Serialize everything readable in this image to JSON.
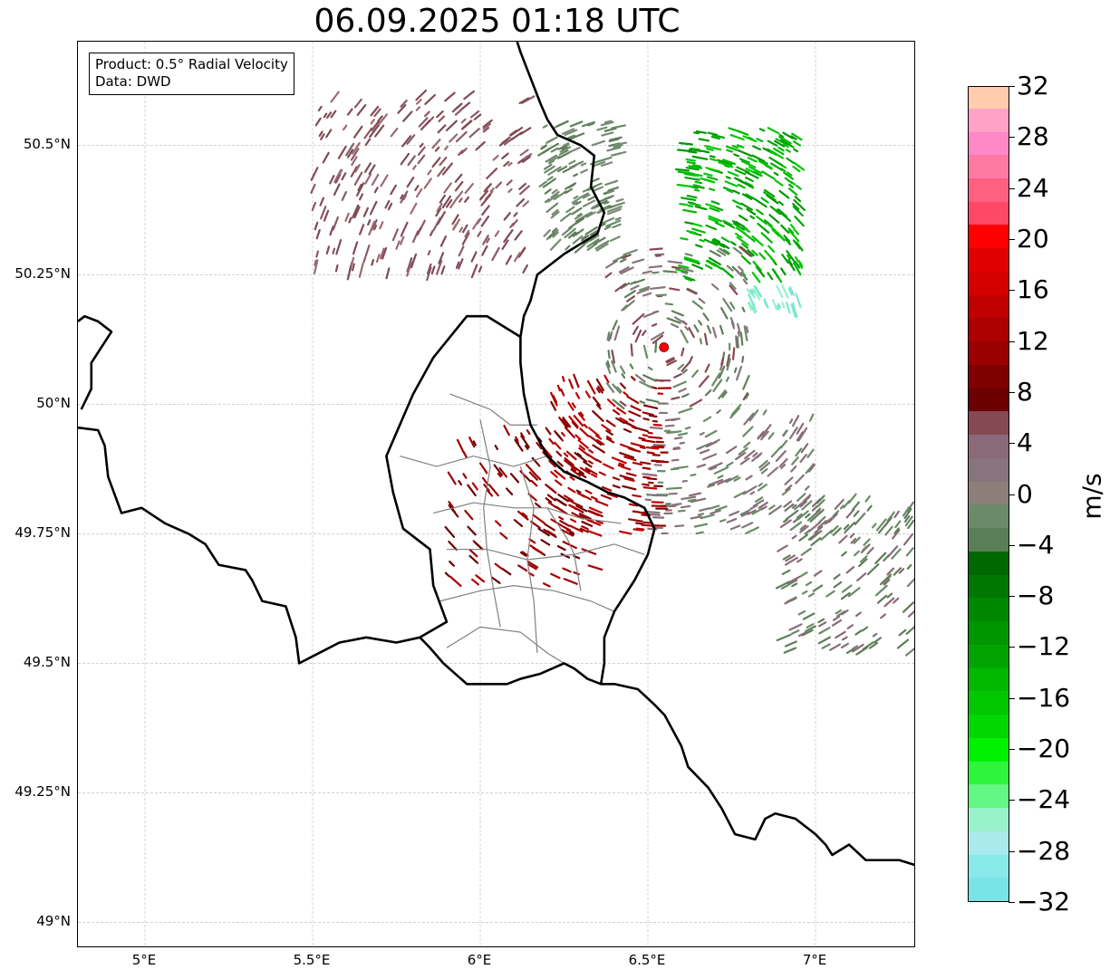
{
  "title": "06.09.2025 01:18 UTC",
  "info": {
    "product": "Product: 0.5° Radial Velocity",
    "data": "Data: DWD"
  },
  "map": {
    "lon_range": [
      4.8,
      7.3
    ],
    "lat_range": [
      48.95,
      50.7
    ],
    "x_ticks": [
      {
        "value": 5.0,
        "label": "5°E"
      },
      {
        "value": 5.5,
        "label": "5.5°E"
      },
      {
        "value": 6.0,
        "label": "6°E"
      },
      {
        "value": 6.5,
        "label": "6.5°E"
      },
      {
        "value": 7.0,
        "label": "7°E"
      }
    ],
    "y_ticks": [
      {
        "value": 49.0,
        "label": "49°N"
      },
      {
        "value": 49.25,
        "label": "49.25°N"
      },
      {
        "value": 49.5,
        "label": "49.5°N"
      },
      {
        "value": 49.75,
        "label": "49.75°N"
      },
      {
        "value": 50.0,
        "label": "50°N"
      },
      {
        "value": 50.25,
        "label": "50.25°N"
      },
      {
        "value": 50.5,
        "label": "50.5°N"
      }
    ],
    "gridlines": true,
    "radar_site": {
      "lon": 6.548,
      "lat": 50.11,
      "color": "#ff0000"
    },
    "borders": [
      [
        [
          4.8,
          50.16
        ],
        [
          4.82,
          50.17
        ],
        [
          4.86,
          50.16
        ],
        [
          4.9,
          50.14
        ],
        [
          4.87,
          50.11
        ],
        [
          4.84,
          50.08
        ],
        [
          4.84,
          50.03
        ],
        [
          4.81,
          49.99
        ]
      ],
      [
        [
          4.8,
          49.955
        ],
        [
          4.86,
          49.95
        ],
        [
          4.88,
          49.92
        ],
        [
          4.89,
          49.86
        ],
        [
          4.93,
          49.79
        ],
        [
          4.99,
          49.8
        ],
        [
          5.06,
          49.77
        ],
        [
          5.13,
          49.75
        ],
        [
          5.18,
          49.73
        ],
        [
          5.22,
          49.69
        ],
        [
          5.3,
          49.68
        ],
        [
          5.32,
          49.66
        ],
        [
          5.35,
          49.62
        ],
        [
          5.42,
          49.61
        ],
        [
          5.45,
          49.55
        ],
        [
          5.46,
          49.5
        ],
        [
          5.52,
          49.52
        ],
        [
          5.58,
          49.54
        ],
        [
          5.66,
          49.55
        ],
        [
          5.75,
          49.54
        ],
        [
          5.82,
          49.55
        ],
        [
          5.85,
          49.53
        ],
        [
          5.89,
          49.5
        ],
        [
          5.96,
          49.46
        ],
        [
          6.08,
          49.46
        ],
        [
          6.12,
          49.47
        ],
        [
          6.18,
          49.48
        ],
        [
          6.25,
          49.5
        ],
        [
          6.28,
          49.49
        ],
        [
          6.32,
          49.47
        ],
        [
          6.36,
          49.46
        ],
        [
          6.4,
          49.46
        ],
        [
          6.47,
          49.45
        ],
        [
          6.52,
          49.42
        ],
        [
          6.55,
          49.4
        ],
        [
          6.6,
          49.34
        ],
        [
          6.62,
          49.3
        ],
        [
          6.68,
          49.26
        ],
        [
          6.72,
          49.22
        ],
        [
          6.76,
          49.17
        ],
        [
          6.82,
          49.16
        ],
        [
          6.85,
          49.2
        ],
        [
          6.88,
          49.21
        ],
        [
          6.94,
          49.2
        ],
        [
          7.0,
          49.17
        ],
        [
          7.03,
          49.15
        ],
        [
          7.05,
          49.13
        ],
        [
          7.1,
          49.15
        ],
        [
          7.15,
          49.12
        ],
        [
          7.25,
          49.12
        ],
        [
          7.3,
          49.11
        ]
      ],
      [
        [
          6.36,
          49.46
        ],
        [
          6.37,
          49.5
        ],
        [
          6.37,
          49.55
        ],
        [
          6.4,
          49.6
        ],
        [
          6.46,
          49.66
        ],
        [
          6.5,
          49.71
        ],
        [
          6.52,
          49.76
        ],
        [
          6.49,
          49.8
        ],
        [
          6.43,
          49.82
        ],
        [
          6.38,
          49.83
        ],
        [
          6.32,
          49.85
        ],
        [
          6.25,
          49.87
        ],
        [
          6.2,
          49.9
        ],
        [
          6.15,
          49.96
        ],
        [
          6.13,
          50.02
        ],
        [
          6.12,
          50.08
        ],
        [
          6.12,
          50.13
        ],
        [
          6.13,
          50.17
        ],
        [
          6.15,
          50.2
        ],
        [
          6.17,
          50.25
        ],
        [
          6.25,
          50.29
        ],
        [
          6.3,
          50.31
        ],
        [
          6.35,
          50.33
        ],
        [
          6.37,
          50.37
        ],
        [
          6.33,
          50.42
        ],
        [
          6.34,
          50.48
        ],
        [
          6.3,
          50.5
        ],
        [
          6.23,
          50.52
        ],
        [
          6.2,
          50.55
        ],
        [
          6.18,
          50.58
        ],
        [
          6.15,
          50.63
        ],
        [
          6.12,
          50.68
        ],
        [
          6.11,
          50.7
        ]
      ],
      [
        [
          5.82,
          49.55
        ],
        [
          5.9,
          49.58
        ],
        [
          5.86,
          49.65
        ],
        [
          5.85,
          49.72
        ],
        [
          5.77,
          49.76
        ],
        [
          5.74,
          49.83
        ],
        [
          5.72,
          49.9
        ],
        [
          5.76,
          49.96
        ],
        [
          5.8,
          50.02
        ],
        [
          5.86,
          50.09
        ],
        [
          5.96,
          50.17
        ],
        [
          6.02,
          50.17
        ],
        [
          6.12,
          50.13
        ]
      ]
    ],
    "districts": [
      [
        [
          5.91,
          50.02
        ],
        [
          6.03,
          49.99
        ],
        [
          6.09,
          49.96
        ],
        [
          6.17,
          49.96
        ]
      ],
      [
        [
          5.76,
          49.9
        ],
        [
          5.87,
          49.88
        ],
        [
          5.98,
          49.9
        ],
        [
          6.1,
          49.88
        ],
        [
          6.2,
          49.9
        ]
      ],
      [
        [
          5.86,
          49.79
        ],
        [
          5.98,
          49.81
        ],
        [
          6.1,
          49.8
        ],
        [
          6.2,
          49.8
        ],
        [
          6.3,
          49.78
        ],
        [
          6.42,
          49.77
        ]
      ],
      [
        [
          5.9,
          49.72
        ],
        [
          6.02,
          49.72
        ],
        [
          6.14,
          49.7
        ],
        [
          6.28,
          49.71
        ],
        [
          6.4,
          49.73
        ],
        [
          6.49,
          49.71
        ]
      ],
      [
        [
          5.88,
          49.62
        ],
        [
          6.0,
          49.64
        ],
        [
          6.1,
          49.65
        ],
        [
          6.22,
          49.64
        ],
        [
          6.33,
          49.62
        ],
        [
          6.4,
          49.6
        ]
      ],
      [
        [
          5.9,
          49.53
        ],
        [
          6.0,
          49.57
        ],
        [
          6.12,
          49.56
        ],
        [
          6.2,
          49.52
        ],
        [
          6.25,
          49.5
        ]
      ],
      [
        [
          6.0,
          49.97
        ],
        [
          6.03,
          49.88
        ],
        [
          6.01,
          49.8
        ],
        [
          6.02,
          49.72
        ],
        [
          6.04,
          49.64
        ],
        [
          6.06,
          49.57
        ]
      ],
      [
        [
          6.12,
          49.88
        ],
        [
          6.16,
          49.8
        ],
        [
          6.14,
          49.7
        ],
        [
          6.16,
          49.62
        ],
        [
          6.17,
          49.52
        ]
      ],
      [
        [
          6.2,
          49.8
        ],
        [
          6.26,
          49.74
        ],
        [
          6.28,
          49.71
        ],
        [
          6.3,
          49.64
        ]
      ]
    ]
  },
  "colorbar": {
    "label": "m/s",
    "vmin": -32,
    "vmax": 32,
    "step": 2,
    "colors": [
      "#7ae3e6",
      "#88e8ea",
      "#a9eaec",
      "#98f2c9",
      "#63f784",
      "#2ef53c",
      "#00f200",
      "#00d800",
      "#00c700",
      "#00b800",
      "#00a400",
      "#009600",
      "#008700",
      "#007700",
      "#006800",
      "#5a7f58",
      "#6a8a6a",
      "#8c7f7a",
      "#88747c",
      "#8a6a78",
      "#864954",
      "#6a0000",
      "#800000",
      "#9a0000",
      "#ad0000",
      "#c00000",
      "#d40000",
      "#e00000",
      "#ff0000",
      "#ff4866",
      "#ff6080",
      "#ff7aa2",
      "#ff88c8",
      "#ffa2c6",
      "#ffcdae"
    ],
    "ticks": [
      "−32",
      "−28",
      "−24",
      "−20",
      "−16",
      "−12",
      "−8",
      "−4",
      "0",
      "4",
      "8",
      "12",
      "16",
      "20",
      "24",
      "28",
      "32"
    ]
  },
  "echo_regions": [
    {
      "lon_range": [
        5.5,
        6.15
      ],
      "lat_range": [
        50.25,
        50.6
      ],
      "n": 260,
      "colors": [
        "#8a5a66",
        "#7a4c58",
        "#9a6a74",
        "#864954"
      ]
    },
    {
      "lon_range": [
        6.18,
        6.42
      ],
      "lat_range": [
        50.3,
        50.55
      ],
      "n": 160,
      "colors": [
        "#5e7e5a",
        "#6a8a6a",
        "#788c74"
      ]
    },
    {
      "lon_range": [
        6.6,
        6.96
      ],
      "lat_range": [
        50.24,
        50.53
      ],
      "n": 260,
      "colors": [
        "#00a400",
        "#009600",
        "#00b800",
        "#00c700"
      ]
    },
    {
      "lon_range": [
        6.9,
        7.3
      ],
      "lat_range": [
        49.52,
        49.82
      ],
      "n": 170,
      "colors": [
        "#5e7e5a",
        "#6a8a6a",
        "#8a6a78"
      ]
    },
    {
      "lon_range": [
        6.5,
        7.0
      ],
      "lat_range": [
        49.75,
        49.99
      ],
      "n": 170,
      "colors": [
        "#8a6a78",
        "#86747c",
        "#6a8a6a"
      ]
    },
    {
      "lon_range": [
        6.2,
        6.55
      ],
      "lat_range": [
        49.75,
        50.05
      ],
      "n": 190,
      "colors": [
        "#9a0000",
        "#ad0000",
        "#800000",
        "#c00000"
      ]
    },
    {
      "lon_range": [
        5.9,
        6.35
      ],
      "lat_range": [
        49.65,
        49.95
      ],
      "n": 120,
      "colors": [
        "#9a0000",
        "#ad0000",
        "#6a0000"
      ]
    },
    {
      "lon_range": [
        6.38,
        6.8
      ],
      "lat_range": [
        50.0,
        50.3
      ],
      "n": 160,
      "colors": [
        "#6a8a6a",
        "#88747c",
        "#5e7e5a",
        "#864954"
      ]
    },
    {
      "lon_range": [
        6.8,
        6.95
      ],
      "lat_range": [
        50.18,
        50.22
      ],
      "n": 25,
      "colors": [
        "#7de8d0",
        "#98f2c9"
      ]
    }
  ]
}
